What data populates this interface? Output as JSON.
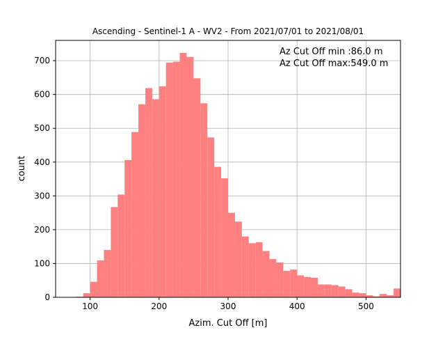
{
  "chart_data": {
    "type": "bar",
    "title": "Ascending - Sentinel-1 A - WV2 - From 2021/07/01 to 2021/08/01",
    "xlabel": "Azim. Cut Off [m]",
    "ylabel": "count",
    "xlim": [
      50,
      550
    ],
    "ylim": [
      0,
      760
    ],
    "x_ticks": [
      100,
      200,
      300,
      400,
      500
    ],
    "y_ticks": [
      0,
      100,
      200,
      300,
      400,
      500,
      600,
      700
    ],
    "grid": true,
    "bar_color": "#ff8080",
    "grid_color": "#b0b0b0",
    "bin_width": 10,
    "bin_starts": [
      70,
      80,
      90,
      100,
      110,
      120,
      130,
      140,
      150,
      160,
      170,
      180,
      190,
      200,
      210,
      220,
      230,
      240,
      250,
      260,
      270,
      280,
      290,
      300,
      310,
      320,
      330,
      340,
      350,
      360,
      370,
      380,
      390,
      400,
      410,
      420,
      430,
      440,
      450,
      460,
      470,
      480,
      490,
      500,
      510,
      520,
      530,
      540
    ],
    "values": [
      1,
      2,
      12,
      46,
      109,
      140,
      267,
      304,
      406,
      489,
      571,
      619,
      586,
      624,
      694,
      697,
      723,
      711,
      648,
      574,
      473,
      386,
      352,
      250,
      224,
      180,
      160,
      163,
      137,
      113,
      103,
      78,
      82,
      65,
      60,
      58,
      38,
      38,
      36,
      32,
      24,
      14,
      12,
      6,
      3,
      10,
      6,
      26
    ],
    "annotations": [
      "Az Cut Off min :86.0 m",
      "Az Cut Off max:549.0 m"
    ]
  }
}
